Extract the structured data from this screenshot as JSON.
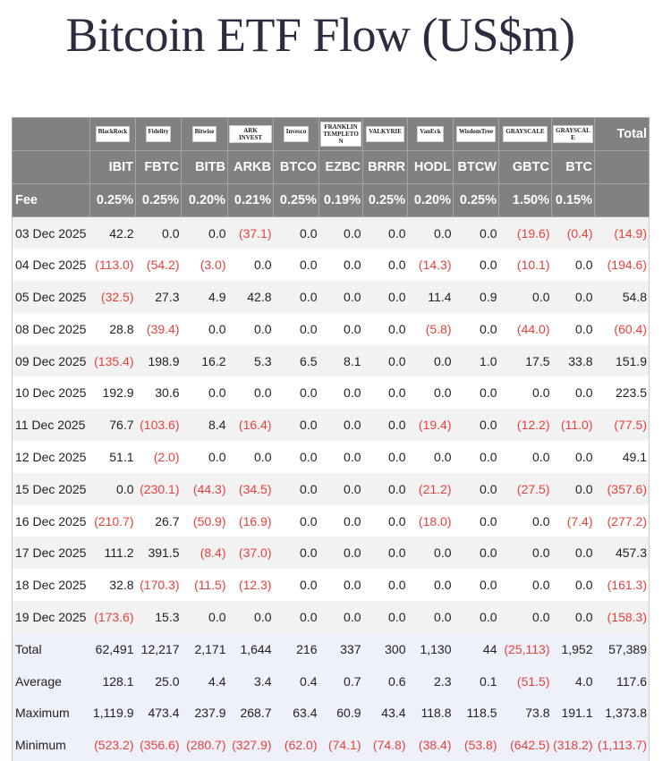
{
  "title": "Bitcoin ETF Flow (US$m)",
  "colors": {
    "header_bg": "#818181",
    "negative": "#e8413c",
    "summary_bg": "#eef0fa"
  },
  "issuers": [
    "BlackRock",
    "Fidelity",
    "Bitwise",
    "ARK INVEST",
    "Invesco",
    "FRANKLIN TEMPLETON",
    "VALKYRIE",
    "VanEck",
    "WisdomTree",
    "GRAYSCALE",
    "GRAYSCALE"
  ],
  "total_label": "Total",
  "tickers": [
    "IBIT",
    "FBTC",
    "BITB",
    "ARKB",
    "BTCO",
    "EZBC",
    "BRRR",
    "HODL",
    "BTCW",
    "GBTC",
    "BTC"
  ],
  "fee_label": "Fee",
  "fees": [
    "0.25%",
    "0.25%",
    "0.20%",
    "0.21%",
    "0.25%",
    "0.19%",
    "0.25%",
    "0.20%",
    "0.25%",
    "1.50%",
    "0.15%"
  ],
  "rows": [
    [
      "03 Dec 2025",
      "42.2",
      "0.0",
      "0.0",
      "(37.1)",
      "0.0",
      "0.0",
      "0.0",
      "0.0",
      "0.0",
      "(19.6)",
      "(0.4)",
      "(14.9)"
    ],
    [
      "04 Dec 2025",
      "(113.0)",
      "(54.2)",
      "(3.0)",
      "0.0",
      "0.0",
      "0.0",
      "0.0",
      "(14.3)",
      "0.0",
      "(10.1)",
      "0.0",
      "(194.6)"
    ],
    [
      "05 Dec 2025",
      "(32.5)",
      "27.3",
      "4.9",
      "42.8",
      "0.0",
      "0.0",
      "0.0",
      "11.4",
      "0.9",
      "0.0",
      "0.0",
      "54.8"
    ],
    [
      "08 Dec 2025",
      "28.8",
      "(39.4)",
      "0.0",
      "0.0",
      "0.0",
      "0.0",
      "0.0",
      "(5.8)",
      "0.0",
      "(44.0)",
      "0.0",
      "(60.4)"
    ],
    [
      "09 Dec 2025",
      "(135.4)",
      "198.9",
      "16.2",
      "5.3",
      "6.5",
      "8.1",
      "0.0",
      "0.0",
      "1.0",
      "17.5",
      "33.8",
      "151.9"
    ],
    [
      "10 Dec 2025",
      "192.9",
      "30.6",
      "0.0",
      "0.0",
      "0.0",
      "0.0",
      "0.0",
      "0.0",
      "0.0",
      "0.0",
      "0.0",
      "223.5"
    ],
    [
      "11 Dec 2025",
      "76.7",
      "(103.6)",
      "8.4",
      "(16.4)",
      "0.0",
      "0.0",
      "0.0",
      "(19.4)",
      "0.0",
      "(12.2)",
      "(11.0)",
      "(77.5)"
    ],
    [
      "12 Dec 2025",
      "51.1",
      "(2.0)",
      "0.0",
      "0.0",
      "0.0",
      "0.0",
      "0.0",
      "0.0",
      "0.0",
      "0.0",
      "0.0",
      "49.1"
    ],
    [
      "15 Dec 2025",
      "0.0",
      "(230.1)",
      "(44.3)",
      "(34.5)",
      "0.0",
      "0.0",
      "0.0",
      "(21.2)",
      "0.0",
      "(27.5)",
      "0.0",
      "(357.6)"
    ],
    [
      "16 Dec 2025",
      "(210.7)",
      "26.7",
      "(50.9)",
      "(16.9)",
      "0.0",
      "0.0",
      "0.0",
      "(18.0)",
      "0.0",
      "0.0",
      "(7.4)",
      "(277.2)"
    ],
    [
      "17 Dec 2025",
      "111.2",
      "391.5",
      "(8.4)",
      "(37.0)",
      "0.0",
      "0.0",
      "0.0",
      "0.0",
      "0.0",
      "0.0",
      "0.0",
      "457.3"
    ],
    [
      "18 Dec 2025",
      "32.8",
      "(170.3)",
      "(11.5)",
      "(12.3)",
      "0.0",
      "0.0",
      "0.0",
      "0.0",
      "0.0",
      "0.0",
      "0.0",
      "(161.3)"
    ],
    [
      "19 Dec 2025",
      "(173.6)",
      "15.3",
      "0.0",
      "0.0",
      "0.0",
      "0.0",
      "0.0",
      "0.0",
      "0.0",
      "0.0",
      "0.0",
      "(158.3)"
    ]
  ],
  "summary": [
    [
      "Total",
      "62,491",
      "12,217",
      "2,171",
      "1,644",
      "216",
      "337",
      "300",
      "1,130",
      "44",
      "(25,113)",
      "1,952",
      "57,389"
    ],
    [
      "Average",
      "128.1",
      "25.0",
      "4.4",
      "3.4",
      "0.4",
      "0.7",
      "0.6",
      "2.3",
      "0.1",
      "(51.5)",
      "4.0",
      "117.6"
    ],
    [
      "Maximum",
      "1,119.9",
      "473.4",
      "237.9",
      "268.7",
      "63.4",
      "60.9",
      "43.4",
      "118.8",
      "118.5",
      "73.8",
      "191.1",
      "1,373.8"
    ],
    [
      "Minimum",
      "(523.2)",
      "(356.6)",
      "(280.7)",
      "(327.9)",
      "(62.0)",
      "(74.1)",
      "(74.8)",
      "(38.4)",
      "(53.8)",
      "(642.5)",
      "(318.2)",
      "(1,113.7)"
    ]
  ]
}
